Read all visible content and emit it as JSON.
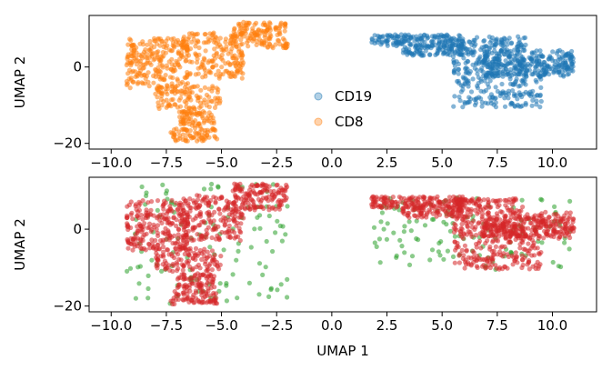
{
  "chart_data": [
    {
      "type": "scatter",
      "title": "",
      "xlabel": "",
      "ylabel": "UMAP 2",
      "xlim": [
        -11,
        12
      ],
      "ylim": [
        -21.5,
        13.5
      ],
      "xticks": [
        -10.0,
        -7.5,
        -5.0,
        -2.5,
        0.0,
        2.5,
        5.0,
        7.5,
        10.0
      ],
      "xtick_labels": [
        "−10.0",
        "−7.5",
        "−5.0",
        "−2.5",
        "0.0",
        "2.5",
        "5.0",
        "7.5",
        "10.0"
      ],
      "yticks": [
        -20,
        0
      ],
      "ytick_labels": [
        "−20",
        "0"
      ],
      "grid": false,
      "legend": {
        "placement": "lower-center",
        "entries": [
          "CD19",
          "CD8"
        ]
      },
      "series": [
        {
          "name": "CD19",
          "color": "#1f77b4",
          "clusters": [
            {
              "x": [
                1.8,
                3.5
              ],
              "y": [
                5.5,
                8.5
              ],
              "n": 60
            },
            {
              "x": [
                3.2,
                6.0
              ],
              "y": [
                3.0,
                8.5
              ],
              "n": 180
            },
            {
              "x": [
                5.5,
                8.8
              ],
              "y": [
                -2.0,
                8.0
              ],
              "n": 220
            },
            {
              "x": [
                6.8,
                11.0
              ],
              "y": [
                -2.5,
                4.5
              ],
              "n": 200
            },
            {
              "x": [
                5.5,
                9.5
              ],
              "y": [
                -10.5,
                -1.5
              ],
              "n": 160
            },
            {
              "x": [
                9.0,
                11.0
              ],
              "y": [
                -1.5,
                3.0
              ],
              "n": 50
            }
          ]
        },
        {
          "name": "CD8",
          "color": "#ff7f0e",
          "clusters": [
            {
              "x": [
                -9.3,
                -6.5
              ],
              "y": [
                -5.5,
                7.5
              ],
              "n": 230
            },
            {
              "x": [
                -6.8,
                -4.0
              ],
              "y": [
                -3.0,
                9.0
              ],
              "n": 190
            },
            {
              "x": [
                -4.5,
                -2.0
              ],
              "y": [
                5.0,
                11.8
              ],
              "n": 140
            },
            {
              "x": [
                -8.0,
                -5.0
              ],
              "y": [
                -11.0,
                -5.0
              ],
              "n": 110
            },
            {
              "x": [
                -7.0,
                -5.3
              ],
              "y": [
                -15.5,
                -11.5
              ],
              "n": 70
            },
            {
              "x": [
                -7.3,
                -5.2
              ],
              "y": [
                -19.5,
                -16.0
              ],
              "n": 70
            }
          ]
        }
      ]
    },
    {
      "type": "scatter",
      "title": "",
      "xlabel": "UMAP 1",
      "ylabel": "UMAP 2",
      "xlim": [
        -11,
        12
      ],
      "ylim": [
        -21.5,
        13.5
      ],
      "xticks": [
        -10.0,
        -7.5,
        -5.0,
        -2.5,
        0.0,
        2.5,
        5.0,
        7.5,
        10.0
      ],
      "xtick_labels": [
        "−10.0",
        "−7.5",
        "−5.0",
        "−2.5",
        "0.0",
        "2.5",
        "5.0",
        "7.5",
        "10.0"
      ],
      "yticks": [
        -20,
        0
      ],
      "ytick_labels": [
        "−20",
        "0"
      ],
      "grid": false,
      "legend": null,
      "series": [
        {
          "color": "#2ca02c",
          "clusters": [
            {
              "x": [
                -9.3,
                -2.0
              ],
              "y": [
                -19.5,
                11.8
              ],
              "n": 120
            },
            {
              "x": [
                1.8,
                11.0
              ],
              "y": [
                -10.5,
                8.5
              ],
              "n": 120
            }
          ]
        },
        {
          "color": "#d62728",
          "clusters": [
            {
              "x": [
                -9.3,
                -6.5
              ],
              "y": [
                -5.5,
                7.5
              ],
              "n": 230
            },
            {
              "x": [
                -6.8,
                -4.0
              ],
              "y": [
                -3.0,
                9.0
              ],
              "n": 190
            },
            {
              "x": [
                -4.5,
                -2.0
              ],
              "y": [
                5.0,
                11.8
              ],
              "n": 140
            },
            {
              "x": [
                -8.0,
                -5.0
              ],
              "y": [
                -11.0,
                -5.0
              ],
              "n": 110
            },
            {
              "x": [
                -7.0,
                -5.3
              ],
              "y": [
                -15.5,
                -11.5
              ],
              "n": 70
            },
            {
              "x": [
                -7.3,
                -5.2
              ],
              "y": [
                -19.5,
                -16.0
              ],
              "n": 70
            },
            {
              "x": [
                1.8,
                3.5
              ],
              "y": [
                5.5,
                8.5
              ],
              "n": 60
            },
            {
              "x": [
                3.2,
                6.0
              ],
              "y": [
                3.0,
                8.5
              ],
              "n": 180
            },
            {
              "x": [
                5.5,
                8.8
              ],
              "y": [
                -2.0,
                8.0
              ],
              "n": 220
            },
            {
              "x": [
                6.8,
                11.0
              ],
              "y": [
                -2.5,
                4.5
              ],
              "n": 200
            },
            {
              "x": [
                5.5,
                9.5
              ],
              "y": [
                -10.5,
                -1.5
              ],
              "n": 160
            },
            {
              "x": [
                9.0,
                11.0
              ],
              "y": [
                -1.5,
                3.0
              ],
              "n": 50
            }
          ]
        }
      ]
    }
  ]
}
